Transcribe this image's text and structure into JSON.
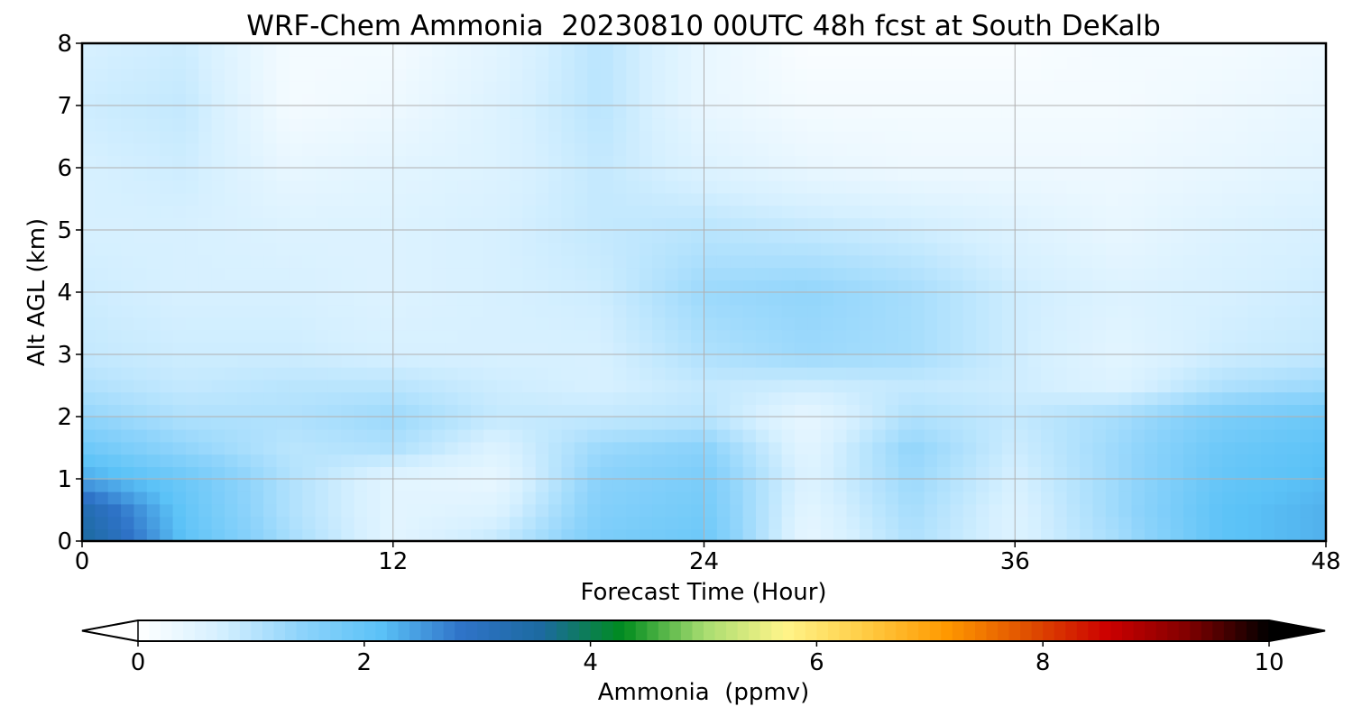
{
  "chart_data": {
    "type": "heatmap",
    "title": "WRF-Chem Ammonia  20230810 00UTC 48h fcst at South DeKalb",
    "xlabel": "Forecast Time (Hour)",
    "ylabel": "Alt AGL (km)",
    "xlim": [
      0,
      48
    ],
    "ylim": [
      0,
      8
    ],
    "x_ticks": [
      "0",
      "12",
      "24",
      "36",
      "48"
    ],
    "y_ticks": [
      "0",
      "1",
      "2",
      "3",
      "4",
      "5",
      "6",
      "7",
      "8"
    ],
    "grid": true,
    "x_hours": [
      0,
      4,
      8,
      12,
      16,
      20,
      24,
      28,
      32,
      36,
      40,
      44,
      48
    ],
    "y_km": [
      0,
      0.5,
      1,
      1.5,
      2,
      2.5,
      3,
      4,
      5,
      6,
      7,
      8
    ],
    "values_ppmv": [
      [
        3.6,
        2.1,
        1.2,
        0.5,
        0.9,
        1.7,
        1.9,
        0.4,
        1.1,
        0.6,
        1.2,
        2.1,
        2.3
      ],
      [
        3.3,
        2.0,
        1.1,
        0.5,
        0.6,
        1.6,
        1.8,
        0.5,
        1.2,
        0.6,
        1.3,
        2.1,
        2.3
      ],
      [
        2.4,
        1.9,
        1.1,
        0.5,
        0.4,
        1.5,
        1.7,
        0.6,
        1.3,
        0.7,
        1.3,
        2.0,
        2.2
      ],
      [
        1.9,
        1.4,
        1.0,
        1.1,
        0.6,
        1.3,
        1.5,
        0.5,
        1.4,
        0.8,
        1.3,
        1.9,
        2.1
      ],
      [
        1.4,
        1.1,
        1.1,
        1.3,
        0.9,
        0.9,
        1.0,
        0.4,
        1.1,
        0.9,
        1.2,
        1.7,
        1.9
      ],
      [
        1.1,
        0.9,
        1.0,
        1.0,
        0.8,
        0.7,
        0.9,
        0.8,
        0.9,
        0.8,
        0.6,
        1.1,
        1.3
      ],
      [
        0.9,
        0.8,
        0.8,
        0.7,
        0.7,
        0.7,
        1.1,
        1.3,
        1.2,
        0.8,
        0.5,
        0.8,
        0.9
      ],
      [
        0.8,
        0.7,
        0.7,
        0.6,
        0.7,
        0.8,
        1.3,
        1.4,
        1.2,
        0.8,
        0.6,
        0.7,
        0.8
      ],
      [
        0.7,
        0.7,
        0.6,
        0.6,
        0.7,
        0.9,
        1.0,
        0.9,
        0.8,
        0.6,
        0.4,
        0.6,
        0.7
      ],
      [
        0.7,
        0.8,
        0.4,
        0.5,
        0.6,
        0.9,
        0.6,
        0.4,
        0.3,
        0.3,
        0.3,
        0.4,
        0.5
      ],
      [
        0.8,
        0.9,
        0.2,
        0.3,
        0.6,
        1.0,
        0.4,
        0.2,
        0.2,
        0.2,
        0.2,
        0.3,
        0.4
      ],
      [
        0.7,
        0.8,
        0.2,
        0.2,
        0.5,
        1.0,
        0.4,
        0.1,
        0.1,
        0.1,
        0.2,
        0.2,
        0.3
      ]
    ],
    "colorbar": {
      "label": "Ammonia  (ppmv)",
      "ticks": [
        "0",
        "2",
        "4",
        "6",
        "8",
        "10"
      ],
      "range": [
        0,
        10
      ],
      "extend": "both",
      "colors": [
        "#ffffff",
        "#d6f0ff",
        "#8fd4fb",
        "#5bc2f7",
        "#2f73c8",
        "#1c6aa0",
        "#008c1e",
        "#a6dc70",
        "#fff58a",
        "#ffcc44",
        "#ff9900",
        "#e05000",
        "#cc0000",
        "#800000",
        "#000000"
      ]
    }
  }
}
